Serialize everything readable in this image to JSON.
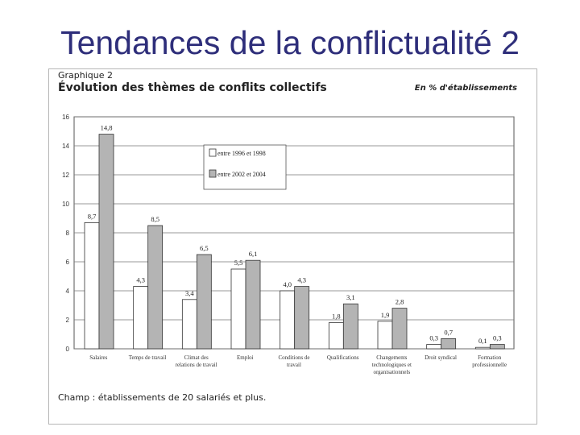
{
  "slide": {
    "title": "Tendances de la conflictualité 2"
  },
  "chart_data": {
    "type": "bar",
    "label": "Graphique 2",
    "title": "Évolution des thèmes de conflits collectifs",
    "unit": "En % d'établissements",
    "note": "Champ : établissements de 20 salariés et plus.",
    "ylim": [
      0,
      16
    ],
    "yticks": [
      0,
      2,
      4,
      6,
      8,
      10,
      12,
      14,
      16
    ],
    "grid": true,
    "legend_position": "top-center",
    "categories": [
      [
        "Salaires"
      ],
      [
        "Temps de travail"
      ],
      [
        "Climat des",
        "relations de travail"
      ],
      [
        "Emploi"
      ],
      [
        "Conditions de",
        "travail"
      ],
      [
        "Qualifications"
      ],
      [
        "Changements",
        "technologiques et",
        "organisationnels"
      ],
      [
        "Droit syndical"
      ],
      [
        "Formation",
        "professionnelle"
      ]
    ],
    "series": [
      {
        "name": "entre 1996 et 1998",
        "color": "#ffffff",
        "values": [
          8.7,
          4.3,
          3.4,
          5.5,
          4.0,
          1.8,
          1.9,
          0.3,
          0.1
        ],
        "labels": [
          "8,7",
          "4,3",
          "3,4",
          "5,5",
          "4,0",
          "1,8",
          "1,9",
          "0,3",
          "0,1"
        ]
      },
      {
        "name": "entre 2002 et 2004",
        "color": "#b4b4b4",
        "values": [
          14.8,
          8.5,
          6.5,
          6.1,
          4.3,
          3.1,
          2.8,
          0.7,
          0.3
        ],
        "labels": [
          "14,8",
          "8,5",
          "6,5",
          "6,1",
          "4,3",
          "3,1",
          "2,8",
          "0,7",
          "0,3"
        ]
      }
    ]
  }
}
